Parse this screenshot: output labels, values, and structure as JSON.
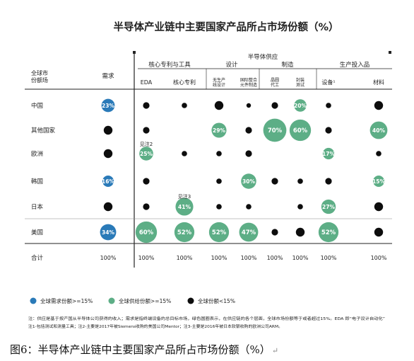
{
  "chart_data": {
    "type": "bubble-matrix",
    "title": "半导体产业链中主要国家产品所占市场份额（%）",
    "supply_header": "半导体供应",
    "groups": [
      "核心专利与工具",
      "设计",
      "制造",
      "生产投入品"
    ],
    "row_header": [
      "全球市",
      "份额场"
    ],
    "columns": [
      "需求",
      "EDA",
      "核心专利",
      "无生产线设计",
      "国际整合元件制造",
      "晶圆代工",
      "封装测试",
      "设备¹",
      "材料"
    ],
    "rows": [
      "中国",
      "其他国家",
      "欧洲",
      "韩国",
      "日本",
      "美国",
      "合计"
    ],
    "cells": [
      [
        {
          "v": 23,
          "k": "blue",
          "label": "23%"
        },
        {
          "v": null,
          "k": "black",
          "s": "m"
        },
        {
          "v": null,
          "k": "black",
          "s": "s"
        },
        {
          "v": null,
          "k": "black",
          "s": "l"
        },
        {
          "v": null,
          "k": "black",
          "s": "xs"
        },
        {
          "v": null,
          "k": "black",
          "s": "m"
        },
        {
          "v": 20,
          "k": "green",
          "label": "20%"
        },
        {
          "v": null,
          "k": "black",
          "s": "s"
        },
        {
          "v": null,
          "k": "black",
          "s": "l"
        }
      ],
      [
        {
          "v": null,
          "k": "black",
          "s": "l"
        },
        {
          "v": null,
          "k": "black",
          "s": "m"
        },
        {
          "v": null,
          "k": "none"
        },
        {
          "v": 29,
          "k": "green",
          "label": "29%"
        },
        {
          "v": null,
          "k": "black",
          "s": "m"
        },
        {
          "v": 70,
          "k": "green",
          "label": "70%"
        },
        {
          "v": 60,
          "k": "green",
          "label": "60%"
        },
        {
          "v": null,
          "k": "black",
          "s": "m"
        },
        {
          "v": 40,
          "k": "green",
          "label": "40%"
        }
      ],
      [
        {
          "v": null,
          "k": "black",
          "s": "l"
        },
        {
          "v": 25,
          "k": "green",
          "label": "25%"
        },
        {
          "v": null,
          "k": "black",
          "s": "s"
        },
        {
          "v": null,
          "k": "black",
          "s": "s"
        },
        {
          "v": null,
          "k": "black",
          "s": "m"
        },
        {
          "v": null,
          "k": "none"
        },
        {
          "v": null,
          "k": "none"
        },
        {
          "v": 17,
          "k": "green",
          "label": "17%"
        },
        {
          "v": null,
          "k": "black",
          "s": "s"
        }
      ],
      [
        {
          "v": 16,
          "k": "blue",
          "label": "16%"
        },
        {
          "v": null,
          "k": "black",
          "s": "m"
        },
        {
          "v": null,
          "k": "none"
        },
        {
          "v": null,
          "k": "black",
          "s": "s"
        },
        {
          "v": 30,
          "k": "green",
          "label": "30%"
        },
        {
          "v": null,
          "k": "black",
          "s": "m"
        },
        {
          "v": null,
          "k": "black",
          "s": "s"
        },
        {
          "v": null,
          "k": "black",
          "s": "m"
        },
        {
          "v": 15,
          "k": "green",
          "label": "15%"
        }
      ],
      [
        {
          "v": null,
          "k": "black",
          "s": "l"
        },
        {
          "v": null,
          "k": "black",
          "s": "m"
        },
        {
          "v": 41,
          "k": "green",
          "label": "41%"
        },
        {
          "v": null,
          "k": "black",
          "s": "s"
        },
        {
          "v": null,
          "k": "black",
          "s": "s"
        },
        {
          "v": null,
          "k": "none"
        },
        {
          "v": null,
          "k": "black",
          "s": "s"
        },
        {
          "v": 27,
          "k": "green",
          "label": "27%"
        },
        {
          "v": null,
          "k": "black",
          "s": "l"
        }
      ],
      [
        {
          "v": 34,
          "k": "blue",
          "label": "34%"
        },
        {
          "v": 60,
          "k": "green",
          "label": "60%"
        },
        {
          "v": 52,
          "k": "green",
          "label": "52%"
        },
        {
          "v": 52,
          "k": "green",
          "label": "52%"
        },
        {
          "v": 47,
          "k": "green",
          "label": "47%"
        },
        {
          "v": null,
          "k": "black",
          "s": "m"
        },
        {
          "v": null,
          "k": "black",
          "s": "l"
        },
        {
          "v": 52,
          "k": "green",
          "label": "52%"
        },
        {
          "v": null,
          "k": "black",
          "s": "l"
        }
      ]
    ],
    "totals": [
      "100%",
      "100%",
      "100%",
      "100%",
      "100%",
      "100%",
      "100%",
      "100%",
      "100%"
    ],
    "annotations": {
      "eda_europe": "见注2",
      "patent_japan": "见注3"
    },
    "legend": [
      {
        "color": "#2a7ab8",
        "label": "全球需求份额>=15%"
      },
      {
        "color": "#5dae86",
        "label": "全球供给份额>=15%"
      },
      {
        "color": "#0d0d0d",
        "label": "全球份额<15%"
      }
    ],
    "colors": {
      "blue": "#2a7ab8",
      "green": "#5dae86",
      "black": "#0d0d0d"
    },
    "notes": [
      "注：供应是基于按产国从半导体公司获得的收入；需求是指终端设备的总目标市场，绿色圆圈表示，在供应链的各个层面，全球市场份额等于或者超过15%。EDA 即“电子设计自动化”",
      "注1-包括测试和测量工具；注2-主要是2017年被Siemens收购的美国公司Mentor；注3-主要是2016年被日本软银收购的欧洲公司ARM。"
    ]
  },
  "caption": "图6：半导体产业链中主要国家产品所占市场份额（%）",
  "caption_mark": "↵"
}
